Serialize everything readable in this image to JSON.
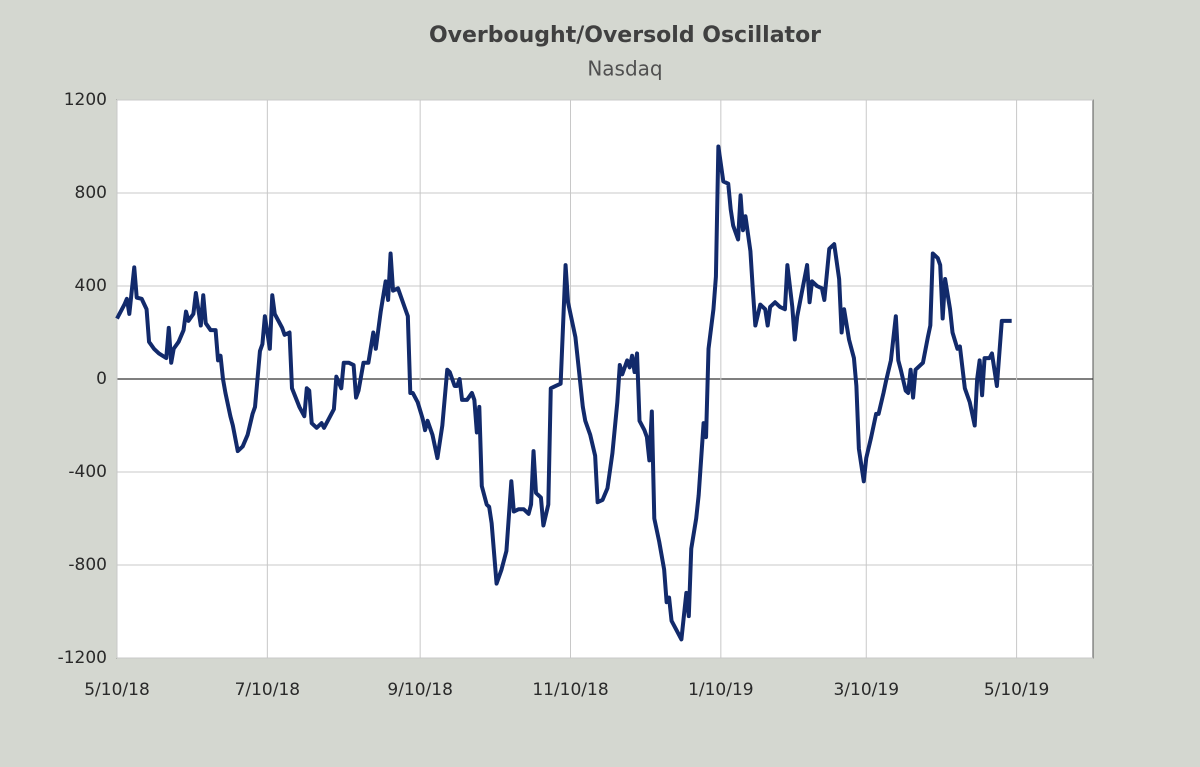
{
  "chart_data": {
    "type": "line",
    "title": "Overbought/Oversold  Oscillator",
    "subtitle": "Nasdaq",
    "x": [
      "2018-05-10",
      "2018-05-13",
      "2018-05-14",
      "2018-05-15",
      "2018-05-17",
      "2018-05-18",
      "2018-05-20",
      "2018-05-22",
      "2018-05-23",
      "2018-05-25",
      "2018-05-27",
      "2018-05-30",
      "2018-05-31",
      "2018-06-01",
      "2018-06-02",
      "2018-06-04",
      "2018-06-06",
      "2018-06-07",
      "2018-06-08",
      "2018-06-10",
      "2018-06-11",
      "2018-06-13",
      "2018-06-14",
      "2018-06-15",
      "2018-06-17",
      "2018-06-19",
      "2018-06-20",
      "2018-06-21",
      "2018-06-22",
      "2018-06-23",
      "2018-06-25",
      "2018-06-26",
      "2018-06-28",
      "2018-06-30",
      "2018-07-02",
      "2018-07-04",
      "2018-07-05",
      "2018-07-07",
      "2018-07-08",
      "2018-07-09",
      "2018-07-11",
      "2018-07-12",
      "2018-07-13",
      "2018-07-16",
      "2018-07-17",
      "2018-07-19",
      "2018-07-20",
      "2018-07-23",
      "2018-07-25",
      "2018-07-26",
      "2018-07-27",
      "2018-07-28",
      "2018-07-30",
      "2018-08-01",
      "2018-08-02",
      "2018-08-04",
      "2018-08-06",
      "2018-08-07",
      "2018-08-09",
      "2018-08-10",
      "2018-08-12",
      "2018-08-14",
      "2018-08-15",
      "2018-08-16",
      "2018-08-18",
      "2018-08-20",
      "2018-08-22",
      "2018-08-23",
      "2018-08-25",
      "2018-08-27",
      "2018-08-28",
      "2018-08-29",
      "2018-08-30",
      "2018-09-01",
      "2018-09-04",
      "2018-09-05",
      "2018-09-06",
      "2018-09-07",
      "2018-09-09",
      "2018-09-11",
      "2018-09-12",
      "2018-09-13",
      "2018-09-15",
      "2018-09-17",
      "2018-09-19",
      "2018-09-21",
      "2018-09-22",
      "2018-09-24",
      "2018-09-25",
      "2018-09-26",
      "2018-09-27",
      "2018-09-29",
      "2018-10-01",
      "2018-10-02",
      "2018-10-03",
      "2018-10-04",
      "2018-10-05",
      "2018-10-07",
      "2018-10-08",
      "2018-10-09",
      "2018-10-11",
      "2018-10-13",
      "2018-10-15",
      "2018-10-17",
      "2018-10-18",
      "2018-10-20",
      "2018-10-22",
      "2018-10-24",
      "2018-10-25",
      "2018-10-26",
      "2018-10-27",
      "2018-10-29",
      "2018-10-30",
      "2018-11-01",
      "2018-11-02",
      "2018-11-04",
      "2018-11-06",
      "2018-11-08",
      "2018-11-09",
      "2018-11-10",
      "2018-11-12",
      "2018-11-15",
      "2018-11-16",
      "2018-11-18",
      "2018-11-20",
      "2018-11-21",
      "2018-11-23",
      "2018-11-25",
      "2018-11-27",
      "2018-11-29",
      "2018-11-30",
      "2018-12-01",
      "2018-12-03",
      "2018-12-04",
      "2018-12-05",
      "2018-12-06",
      "2018-12-07",
      "2018-12-08",
      "2018-12-10",
      "2018-12-11",
      "2018-12-12",
      "2018-12-13",
      "2018-12-14",
      "2018-12-16",
      "2018-12-18",
      "2018-12-19",
      "2018-12-20",
      "2018-12-21",
      "2018-12-23",
      "2018-12-25",
      "2018-12-27",
      "2018-12-28",
      "2018-12-29",
      "2018-12-31",
      "2019-01-01",
      "2019-01-03",
      "2019-01-04",
      "2019-01-05",
      "2019-01-07",
      "2019-01-08",
      "2019-01-09",
      "2019-01-11",
      "2019-01-13",
      "2019-01-14",
      "2019-01-15",
      "2019-01-17",
      "2019-01-18",
      "2019-01-19",
      "2019-01-20",
      "2019-01-22",
      "2019-01-23",
      "2019-01-24",
      "2019-01-26",
      "2019-01-28",
      "2019-01-29",
      "2019-01-30",
      "2019-02-01",
      "2019-02-03",
      "2019-02-05",
      "2019-02-06",
      "2019-02-08",
      "2019-02-09",
      "2019-02-10",
      "2019-02-12",
      "2019-02-14",
      "2019-02-15",
      "2019-02-16",
      "2019-02-18",
      "2019-02-20",
      "2019-02-21",
      "2019-02-23",
      "2019-02-24",
      "2019-02-25",
      "2019-02-27",
      "2019-02-28",
      "2019-03-01",
      "2019-03-03",
      "2019-03-05",
      "2019-03-06",
      "2019-03-07",
      "2019-03-09",
      "2019-03-10",
      "2019-03-12",
      "2019-03-14",
      "2019-03-15",
      "2019-03-17",
      "2019-03-18",
      "2019-03-20",
      "2019-03-22",
      "2019-03-23",
      "2019-03-24",
      "2019-03-26",
      "2019-03-27",
      "2019-03-28",
      "2019-03-29",
      "2019-03-30",
      "2019-04-01",
      "2019-04-02",
      "2019-04-04",
      "2019-04-05",
      "2019-04-06",
      "2019-04-08",
      "2019-04-09",
      "2019-04-10",
      "2019-04-11",
      "2019-04-13",
      "2019-04-14",
      "2019-04-16",
      "2019-04-17",
      "2019-04-19",
      "2019-04-21",
      "2019-04-23",
      "2019-04-24",
      "2019-04-25",
      "2019-04-26",
      "2019-04-27",
      "2019-04-29",
      "2019-04-30",
      "2019-05-02",
      "2019-05-04",
      "2019-05-06",
      "2019-05-08"
    ],
    "series": [
      {
        "name": "Nasdaq",
        "color": "#122a6b",
        "values": [
          260,
          320,
          345,
          280,
          480,
          350,
          345,
          300,
          160,
          130,
          110,
          90,
          220,
          70,
          130,
          160,
          210,
          290,
          250,
          280,
          370,
          230,
          360,
          240,
          210,
          210,
          80,
          100,
          0,
          -60,
          -160,
          -200,
          -310,
          -290,
          -240,
          -150,
          -120,
          120,
          150,
          270,
          130,
          360,
          280,
          220,
          190,
          200,
          -40,
          -120,
          -160,
          -40,
          -50,
          -190,
          -210,
          -190,
          -210,
          -170,
          -130,
          10,
          -40,
          70,
          70,
          60,
          -80,
          -50,
          70,
          70,
          200,
          130,
          290,
          420,
          340,
          540,
          380,
          390,
          300,
          270,
          -60,
          -60,
          -100,
          -170,
          -220,
          -180,
          -240,
          -340,
          -200,
          40,
          30,
          -30,
          -30,
          0,
          -90,
          -90,
          -60,
          -90,
          -230,
          -120,
          -460,
          -540,
          -550,
          -620,
          -880,
          -820,
          -740,
          -440,
          -570,
          -560,
          -560,
          -580,
          -540,
          -310,
          -490,
          -510,
          -630,
          -540,
          -40,
          -30,
          -20,
          490,
          330,
          280,
          180,
          -120,
          -180,
          -240,
          -330,
          -530,
          -520,
          -470,
          -320,
          -100,
          60,
          20,
          80,
          50,
          100,
          30,
          110,
          -180,
          -220,
          -250,
          -350,
          -140,
          -600,
          -700,
          -820,
          -960,
          -940,
          -1040,
          -1080,
          -1120,
          -920,
          -1020,
          -730,
          -600,
          -500,
          -190,
          -250,
          130,
          300,
          440,
          1000,
          850,
          840,
          730,
          660,
          600,
          790,
          640,
          700,
          550,
          380,
          230,
          320,
          300,
          230,
          310,
          330,
          310,
          300,
          490,
          310,
          170,
          270,
          380,
          490,
          330,
          420,
          400,
          390,
          340,
          560,
          570,
          580,
          430,
          200,
          300,
          170,
          90,
          -30,
          -300,
          -440,
          -340,
          -250,
          -150,
          -150,
          -60,
          -10,
          80,
          270,
          80,
          40,
          -50,
          -60,
          40,
          -80,
          40,
          60,
          70,
          180,
          230,
          540,
          520,
          490,
          260,
          430,
          300,
          200,
          130,
          140,
          -40,
          -100,
          -200,
          0,
          80,
          -70,
          90,
          90,
          110,
          -30,
          250,
          250,
          250
        ]
      }
    ],
    "xlim": [
      "2018-05-10",
      "2019-06-10"
    ],
    "xticks": [
      {
        "value": "2018-05-10",
        "label": "5/10/18"
      },
      {
        "value": "2018-07-10",
        "label": "7/10/18"
      },
      {
        "value": "2018-09-10",
        "label": "9/10/18"
      },
      {
        "value": "2018-11-10",
        "label": "11/10/18"
      },
      {
        "value": "2019-01-10",
        "label": "1/10/19"
      },
      {
        "value": "2019-03-10",
        "label": "3/10/19"
      },
      {
        "value": "2019-05-10",
        "label": "5/10/19"
      }
    ],
    "ylim": [
      -1200,
      1200
    ],
    "yticks": [
      -1200,
      -800,
      -400,
      0,
      400,
      800,
      1200
    ],
    "grid": true
  }
}
